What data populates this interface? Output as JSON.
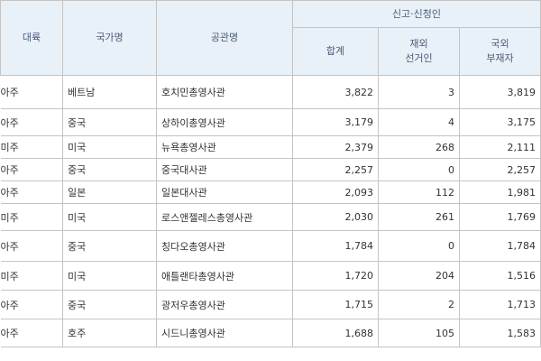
{
  "table": {
    "headers": {
      "continent": "대륙",
      "country": "국가명",
      "mission": "공관명",
      "group": "신고·신청인",
      "total": "합계",
      "resident_line1": "재외",
      "resident_line2": "선거인",
      "absentee_line1": "국외",
      "absentee_line2": "부재자"
    },
    "rows": [
      {
        "continent": "아주",
        "country": "베트남",
        "mission": "호치민총영사관",
        "total": "3,822",
        "resident": "3",
        "absentee": "3,819"
      },
      {
        "continent": "아주",
        "country": "중국",
        "mission": "상하이총영사관",
        "total": "3,179",
        "resident": "4",
        "absentee": "3,175"
      },
      {
        "continent": "미주",
        "country": "미국",
        "mission": "뉴욕총영사관",
        "total": "2,379",
        "resident": "268",
        "absentee": "2,111"
      },
      {
        "continent": "아주",
        "country": "중국",
        "mission": "중국대사관",
        "total": "2,257",
        "resident": "0",
        "absentee": "2,257"
      },
      {
        "continent": "아주",
        "country": "일본",
        "mission": "일본대사관",
        "total": "2,093",
        "resident": "112",
        "absentee": "1,981"
      },
      {
        "continent": "미주",
        "country": "미국",
        "mission": "로스앤젤레스총영사관",
        "total": "2,030",
        "resident": "261",
        "absentee": "1,769"
      },
      {
        "continent": "아주",
        "country": "중국",
        "mission": "칭다오총영사관",
        "total": "1,784",
        "resident": "0",
        "absentee": "1,784"
      },
      {
        "continent": "미주",
        "country": "미국",
        "mission": "애틀랜타총영사관",
        "total": "1,720",
        "resident": "204",
        "absentee": "1,516"
      },
      {
        "continent": "아주",
        "country": "중국",
        "mission": "광저우총영사관",
        "total": "1,715",
        "resident": "2",
        "absentee": "1,713"
      },
      {
        "continent": "아주",
        "country": "호주",
        "mission": "시드니총영사관",
        "total": "1,688",
        "resident": "105",
        "absentee": "1,583"
      }
    ]
  }
}
